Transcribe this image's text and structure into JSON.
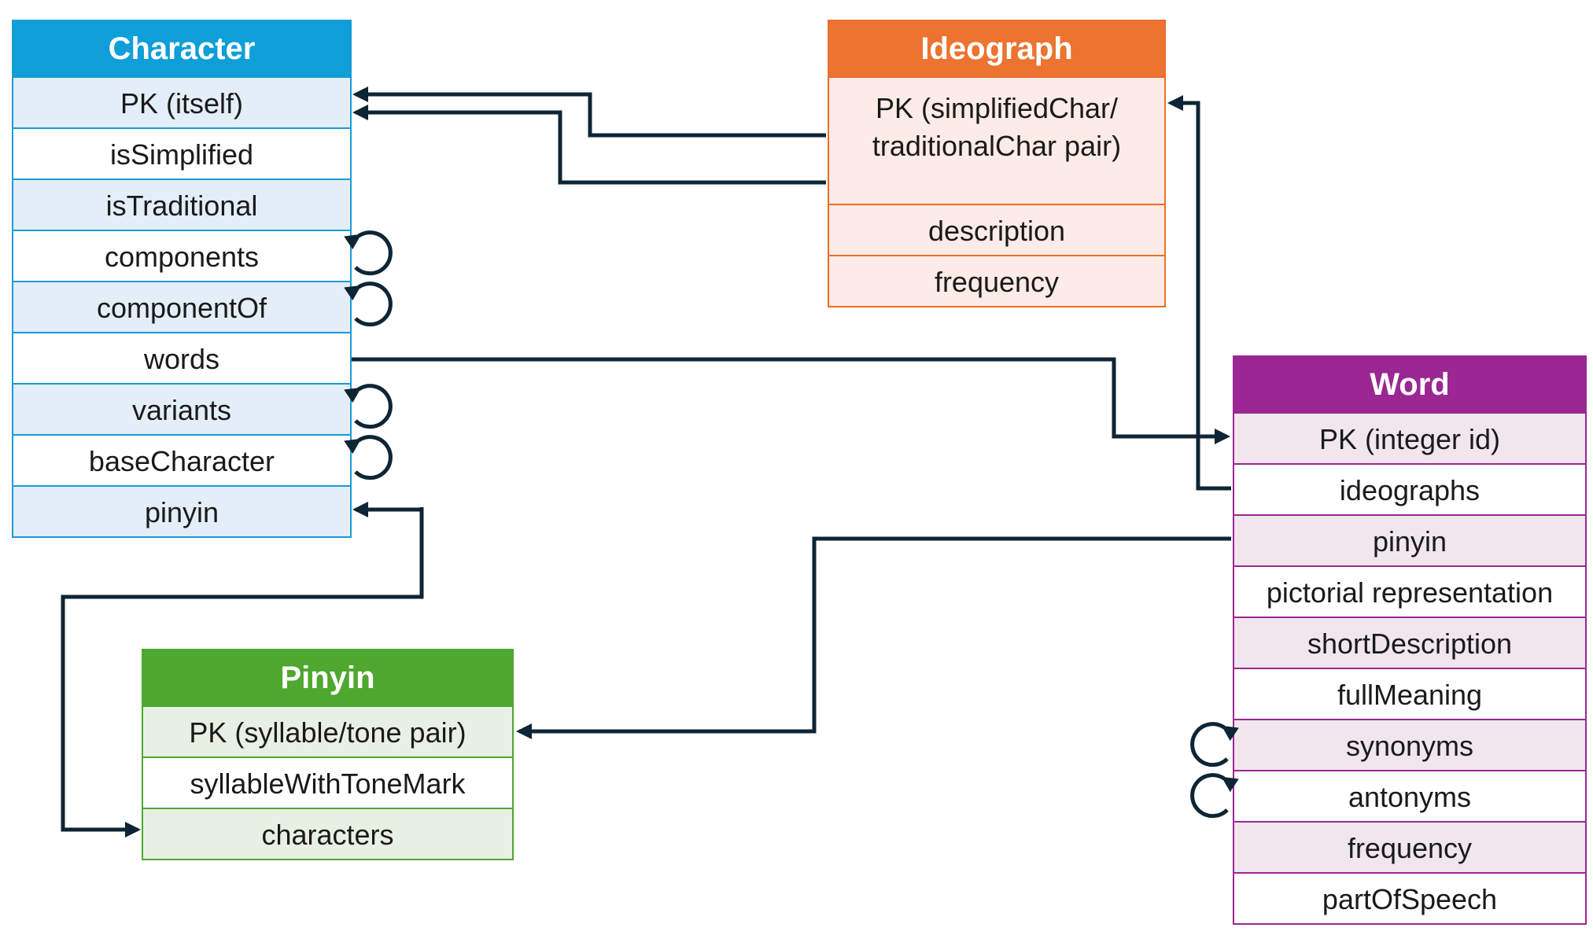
{
  "character": {
    "title": "Character",
    "fields": [
      "PK (itself)",
      "isSimplified",
      "isTraditional",
      "components",
      "componentOf",
      "words",
      "variants",
      "baseCharacter",
      "pinyin"
    ]
  },
  "ideograph": {
    "title": "Ideograph",
    "pk": "PK (simplifiedChar/ traditionalChar pair)",
    "fields": [
      "description",
      "frequency"
    ]
  },
  "word": {
    "title": "Word",
    "fields": [
      "PK (integer id)",
      "ideographs",
      "pinyin",
      "pictorial representation",
      "shortDescription",
      "fullMeaning",
      "synonyms",
      "antonyms",
      "frequency",
      "partOfSpeech"
    ]
  },
  "pinyin": {
    "title": "Pinyin",
    "fields": [
      "PK (syllable/tone pair)",
      "syllableWithToneMark",
      "characters"
    ]
  },
  "colors": {
    "character": "#0e9ed8",
    "ideograph": "#ec7330",
    "word": "#9b2792",
    "pinyin": "#4ea72f",
    "connector": "#0d2535"
  }
}
